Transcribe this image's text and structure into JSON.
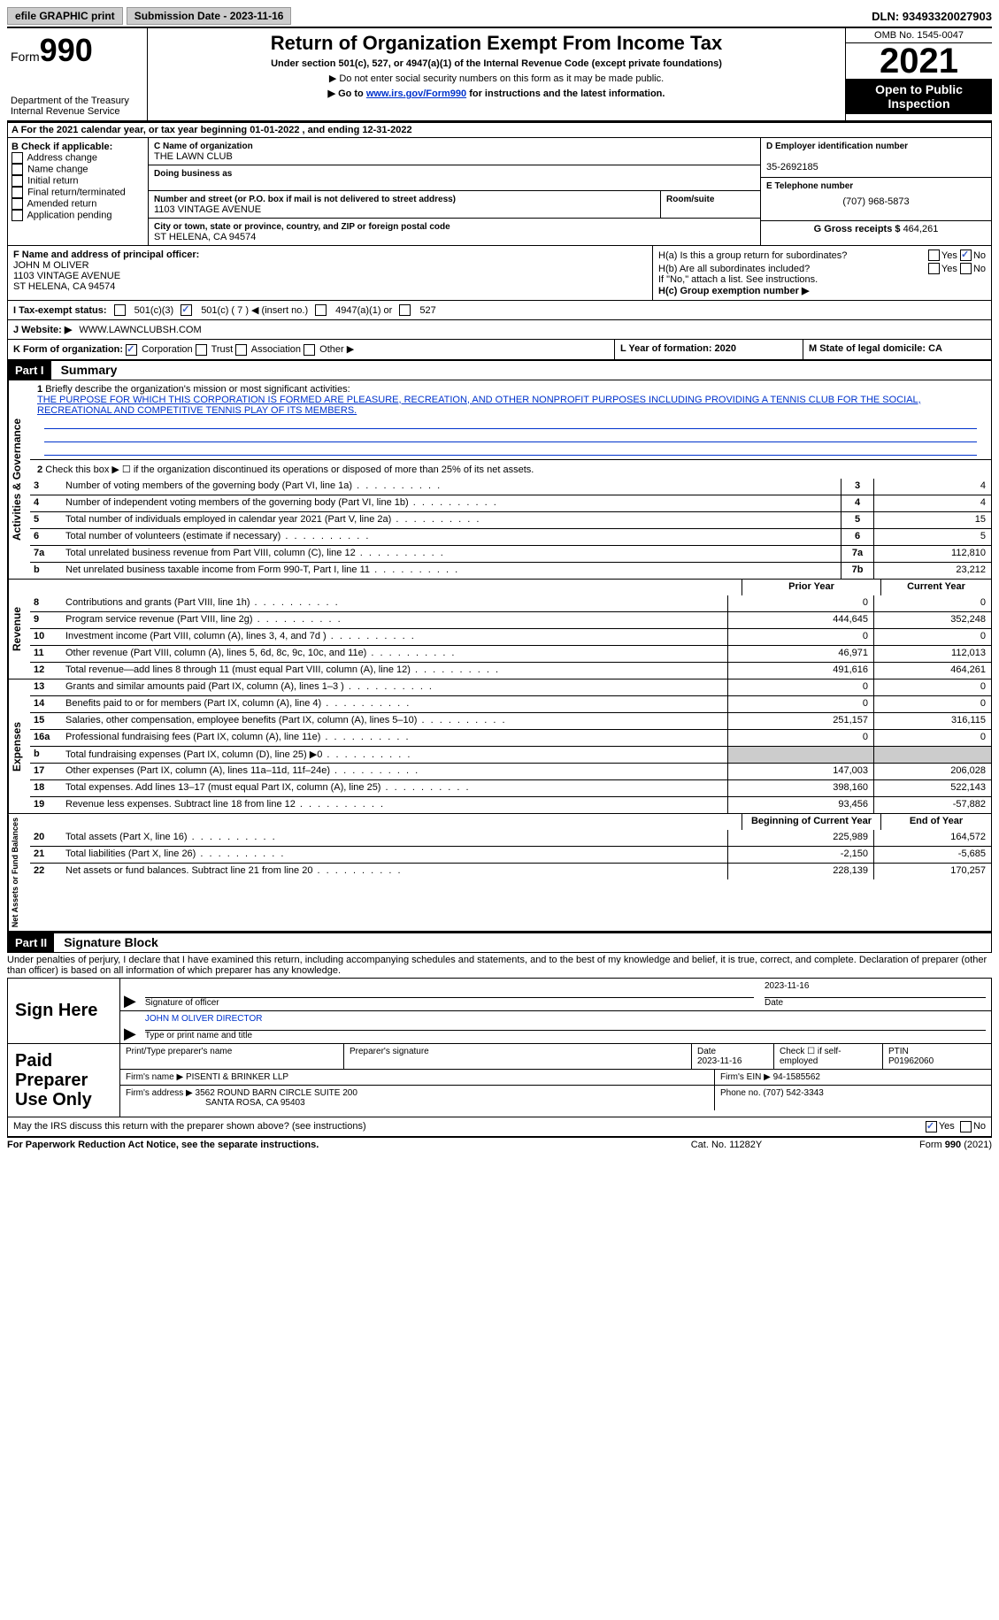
{
  "topbar": {
    "efile_label": "efile GRAPHIC print",
    "submission_label": "Submission Date - 2023-11-16",
    "dln_label": "DLN: 93493320027903"
  },
  "header": {
    "form_prefix": "Form",
    "form_number": "990",
    "title": "Return of Organization Exempt From Income Tax",
    "subtitle": "Under section 501(c), 527, or 4947(a)(1) of the Internal Revenue Code (except private foundations)",
    "note1": "▶ Do not enter social security numbers on this form as it may be made public.",
    "note2_prefix": "▶ Go to ",
    "note2_link": "www.irs.gov/Form990",
    "note2_suffix": " for instructions and the latest information.",
    "dept": "Department of the Treasury",
    "irs": "Internal Revenue Service",
    "omb": "OMB No. 1545-0047",
    "year": "2021",
    "open_public": "Open to Public Inspection"
  },
  "row_a": "A For the 2021 calendar year, or tax year beginning 01-01-2022    , and ending 12-31-2022",
  "box_b": {
    "label": "B Check if applicable:",
    "items": [
      "Address change",
      "Name change",
      "Initial return",
      "Final return/terminated",
      "Amended return",
      "Application pending"
    ]
  },
  "box_c": {
    "name_label": "C Name of organization",
    "name": "THE LAWN CLUB",
    "dba_label": "Doing business as",
    "addr_label": "Number and street (or P.O. box if mail is not delivered to street address)",
    "addr": "1103 VINTAGE AVENUE",
    "room_label": "Room/suite",
    "city_label": "City or town, state or province, country, and ZIP or foreign postal code",
    "city": "ST HELENA, CA  94574"
  },
  "box_d": {
    "ein_label": "D Employer identification number",
    "ein": "35-2692185",
    "phone_label": "E Telephone number",
    "phone": "(707) 968-5873",
    "gross_label": "G Gross receipts $",
    "gross": "464,261"
  },
  "box_f": {
    "label": "F  Name and address of principal officer:",
    "name": "JOHN M OLIVER",
    "addr1": "1103 VINTAGE AVENUE",
    "addr2": "ST HELENA, CA  94574"
  },
  "box_h": {
    "ha": "H(a)  Is this a group return for subordinates?",
    "hb": "H(b)  Are all subordinates included?",
    "hb_note": "If \"No,\" attach a list. See instructions.",
    "hc": "H(c)  Group exemption number ▶"
  },
  "tax_status": {
    "label": "I  Tax-exempt status:",
    "opt1": "501(c)(3)",
    "opt2": "501(c) ( 7 ) ◀ (insert no.)",
    "opt3": "4947(a)(1) or",
    "opt4": "527"
  },
  "website": {
    "label": "J  Website: ▶",
    "value": "WWW.LAWNCLUBSH.COM"
  },
  "row_k": {
    "label": "K Form of organization:",
    "opts": [
      "Corporation",
      "Trust",
      "Association",
      "Other ▶"
    ],
    "l_label": "L Year of formation: 2020",
    "m_label": "M State of legal domicile: CA"
  },
  "part1": {
    "header": "Part I",
    "title": "Summary",
    "line1_label": "Briefly describe the organization's mission or most significant activities:",
    "line1_text": "THE PURPOSE FOR WHICH THIS CORPORATION IS FORMED ARE PLEASURE, RECREATION, AND OTHER NONPROFIT PURPOSES INCLUDING PROVIDING A TENNIS CLUB FOR THE SOCIAL, RECREATIONAL AND COMPETITIVE TENNIS PLAY OF ITS MEMBERS.",
    "line2": "Check this box ▶ ☐ if the organization discontinued its operations or disposed of more than 25% of its net assets.",
    "governance_label": "Activities & Governance",
    "lines_gov": [
      {
        "n": "3",
        "label": "Number of voting members of the governing body (Part VI, line 1a)",
        "box": "3",
        "val": "4"
      },
      {
        "n": "4",
        "label": "Number of independent voting members of the governing body (Part VI, line 1b)",
        "box": "4",
        "val": "4"
      },
      {
        "n": "5",
        "label": "Total number of individuals employed in calendar year 2021 (Part V, line 2a)",
        "box": "5",
        "val": "15"
      },
      {
        "n": "6",
        "label": "Total number of volunteers (estimate if necessary)",
        "box": "6",
        "val": "5"
      },
      {
        "n": "7a",
        "label": "Total unrelated business revenue from Part VIII, column (C), line 12",
        "box": "7a",
        "val": "112,810"
      },
      {
        "n": " b",
        "label": "Net unrelated business taxable income from Form 990-T, Part I, line 11",
        "box": "7b",
        "val": "23,212"
      }
    ],
    "revenue_label": "Revenue",
    "prior_header": "Prior Year",
    "current_header": "Current Year",
    "lines_rev": [
      {
        "n": "8",
        "label": "Contributions and grants (Part VIII, line 1h)",
        "prior": "0",
        "curr": "0"
      },
      {
        "n": "9",
        "label": "Program service revenue (Part VIII, line 2g)",
        "prior": "444,645",
        "curr": "352,248"
      },
      {
        "n": "10",
        "label": "Investment income (Part VIII, column (A), lines 3, 4, and 7d )",
        "prior": "0",
        "curr": "0"
      },
      {
        "n": "11",
        "label": "Other revenue (Part VIII, column (A), lines 5, 6d, 8c, 9c, 10c, and 11e)",
        "prior": "46,971",
        "curr": "112,013"
      },
      {
        "n": "12",
        "label": "Total revenue—add lines 8 through 11 (must equal Part VIII, column (A), line 12)",
        "prior": "491,616",
        "curr": "464,261"
      }
    ],
    "expenses_label": "Expenses",
    "lines_exp": [
      {
        "n": "13",
        "label": "Grants and similar amounts paid (Part IX, column (A), lines 1–3 )",
        "prior": "0",
        "curr": "0"
      },
      {
        "n": "14",
        "label": "Benefits paid to or for members (Part IX, column (A), line 4)",
        "prior": "0",
        "curr": "0"
      },
      {
        "n": "15",
        "label": "Salaries, other compensation, employee benefits (Part IX, column (A), lines 5–10)",
        "prior": "251,157",
        "curr": "316,115"
      },
      {
        "n": "16a",
        "label": "Professional fundraising fees (Part IX, column (A), line 11e)",
        "prior": "0",
        "curr": "0"
      },
      {
        "n": " b",
        "label": "Total fundraising expenses (Part IX, column (D), line 25) ▶0",
        "prior": "shaded",
        "curr": "shaded"
      },
      {
        "n": "17",
        "label": "Other expenses (Part IX, column (A), lines 11a–11d, 11f–24e)",
        "prior": "147,003",
        "curr": "206,028"
      },
      {
        "n": "18",
        "label": "Total expenses. Add lines 13–17 (must equal Part IX, column (A), line 25)",
        "prior": "398,160",
        "curr": "522,143"
      },
      {
        "n": "19",
        "label": "Revenue less expenses. Subtract line 18 from line 12",
        "prior": "93,456",
        "curr": "-57,882"
      }
    ],
    "netassets_label": "Net Assets or Fund Balances",
    "begin_header": "Beginning of Current Year",
    "end_header": "End of Year",
    "lines_net": [
      {
        "n": "20",
        "label": "Total assets (Part X, line 16)",
        "prior": "225,989",
        "curr": "164,572"
      },
      {
        "n": "21",
        "label": "Total liabilities (Part X, line 26)",
        "prior": "-2,150",
        "curr": "-5,685"
      },
      {
        "n": "22",
        "label": "Net assets or fund balances. Subtract line 21 from line 20",
        "prior": "228,139",
        "curr": "170,257"
      }
    ]
  },
  "part2": {
    "header": "Part II",
    "title": "Signature Block",
    "declaration": "Under penalties of perjury, I declare that I have examined this return, including accompanying schedules and statements, and to the best of my knowledge and belief, it is true, correct, and complete. Declaration of preparer (other than officer) is based on all information of which preparer has any knowledge.",
    "sign_here": "Sign Here",
    "sig_officer": "Signature of officer",
    "sig_date": "2023-11-16",
    "date_label": "Date",
    "officer_name": "JOHN M OLIVER  DIRECTOR",
    "type_name": "Type or print name and title",
    "paid_prep": "Paid Preparer Use Only",
    "prep_name_label": "Print/Type preparer's name",
    "prep_sig_label": "Preparer's signature",
    "prep_date_label": "Date",
    "prep_date": "2023-11-16",
    "check_self": "Check ☐ if self-employed",
    "ptin_label": "PTIN",
    "ptin": "P01962060",
    "firm_name_label": "Firm's name      ▶",
    "firm_name": "PISENTI & BRINKER LLP",
    "firm_ein_label": "Firm's EIN ▶",
    "firm_ein": "94-1585562",
    "firm_addr_label": "Firm's address ▶",
    "firm_addr1": "3562 ROUND BARN CIRCLE SUITE 200",
    "firm_addr2": "SANTA ROSA, CA  95403",
    "firm_phone_label": "Phone no.",
    "firm_phone": "(707) 542-3343",
    "discuss": "May the IRS discuss this return with the preparer shown above? (see instructions)"
  },
  "footer": {
    "paperwork": "For Paperwork Reduction Act Notice, see the separate instructions.",
    "cat": "Cat. No. 11282Y",
    "form": "Form 990 (2021)"
  },
  "yes": "Yes",
  "no": "No"
}
